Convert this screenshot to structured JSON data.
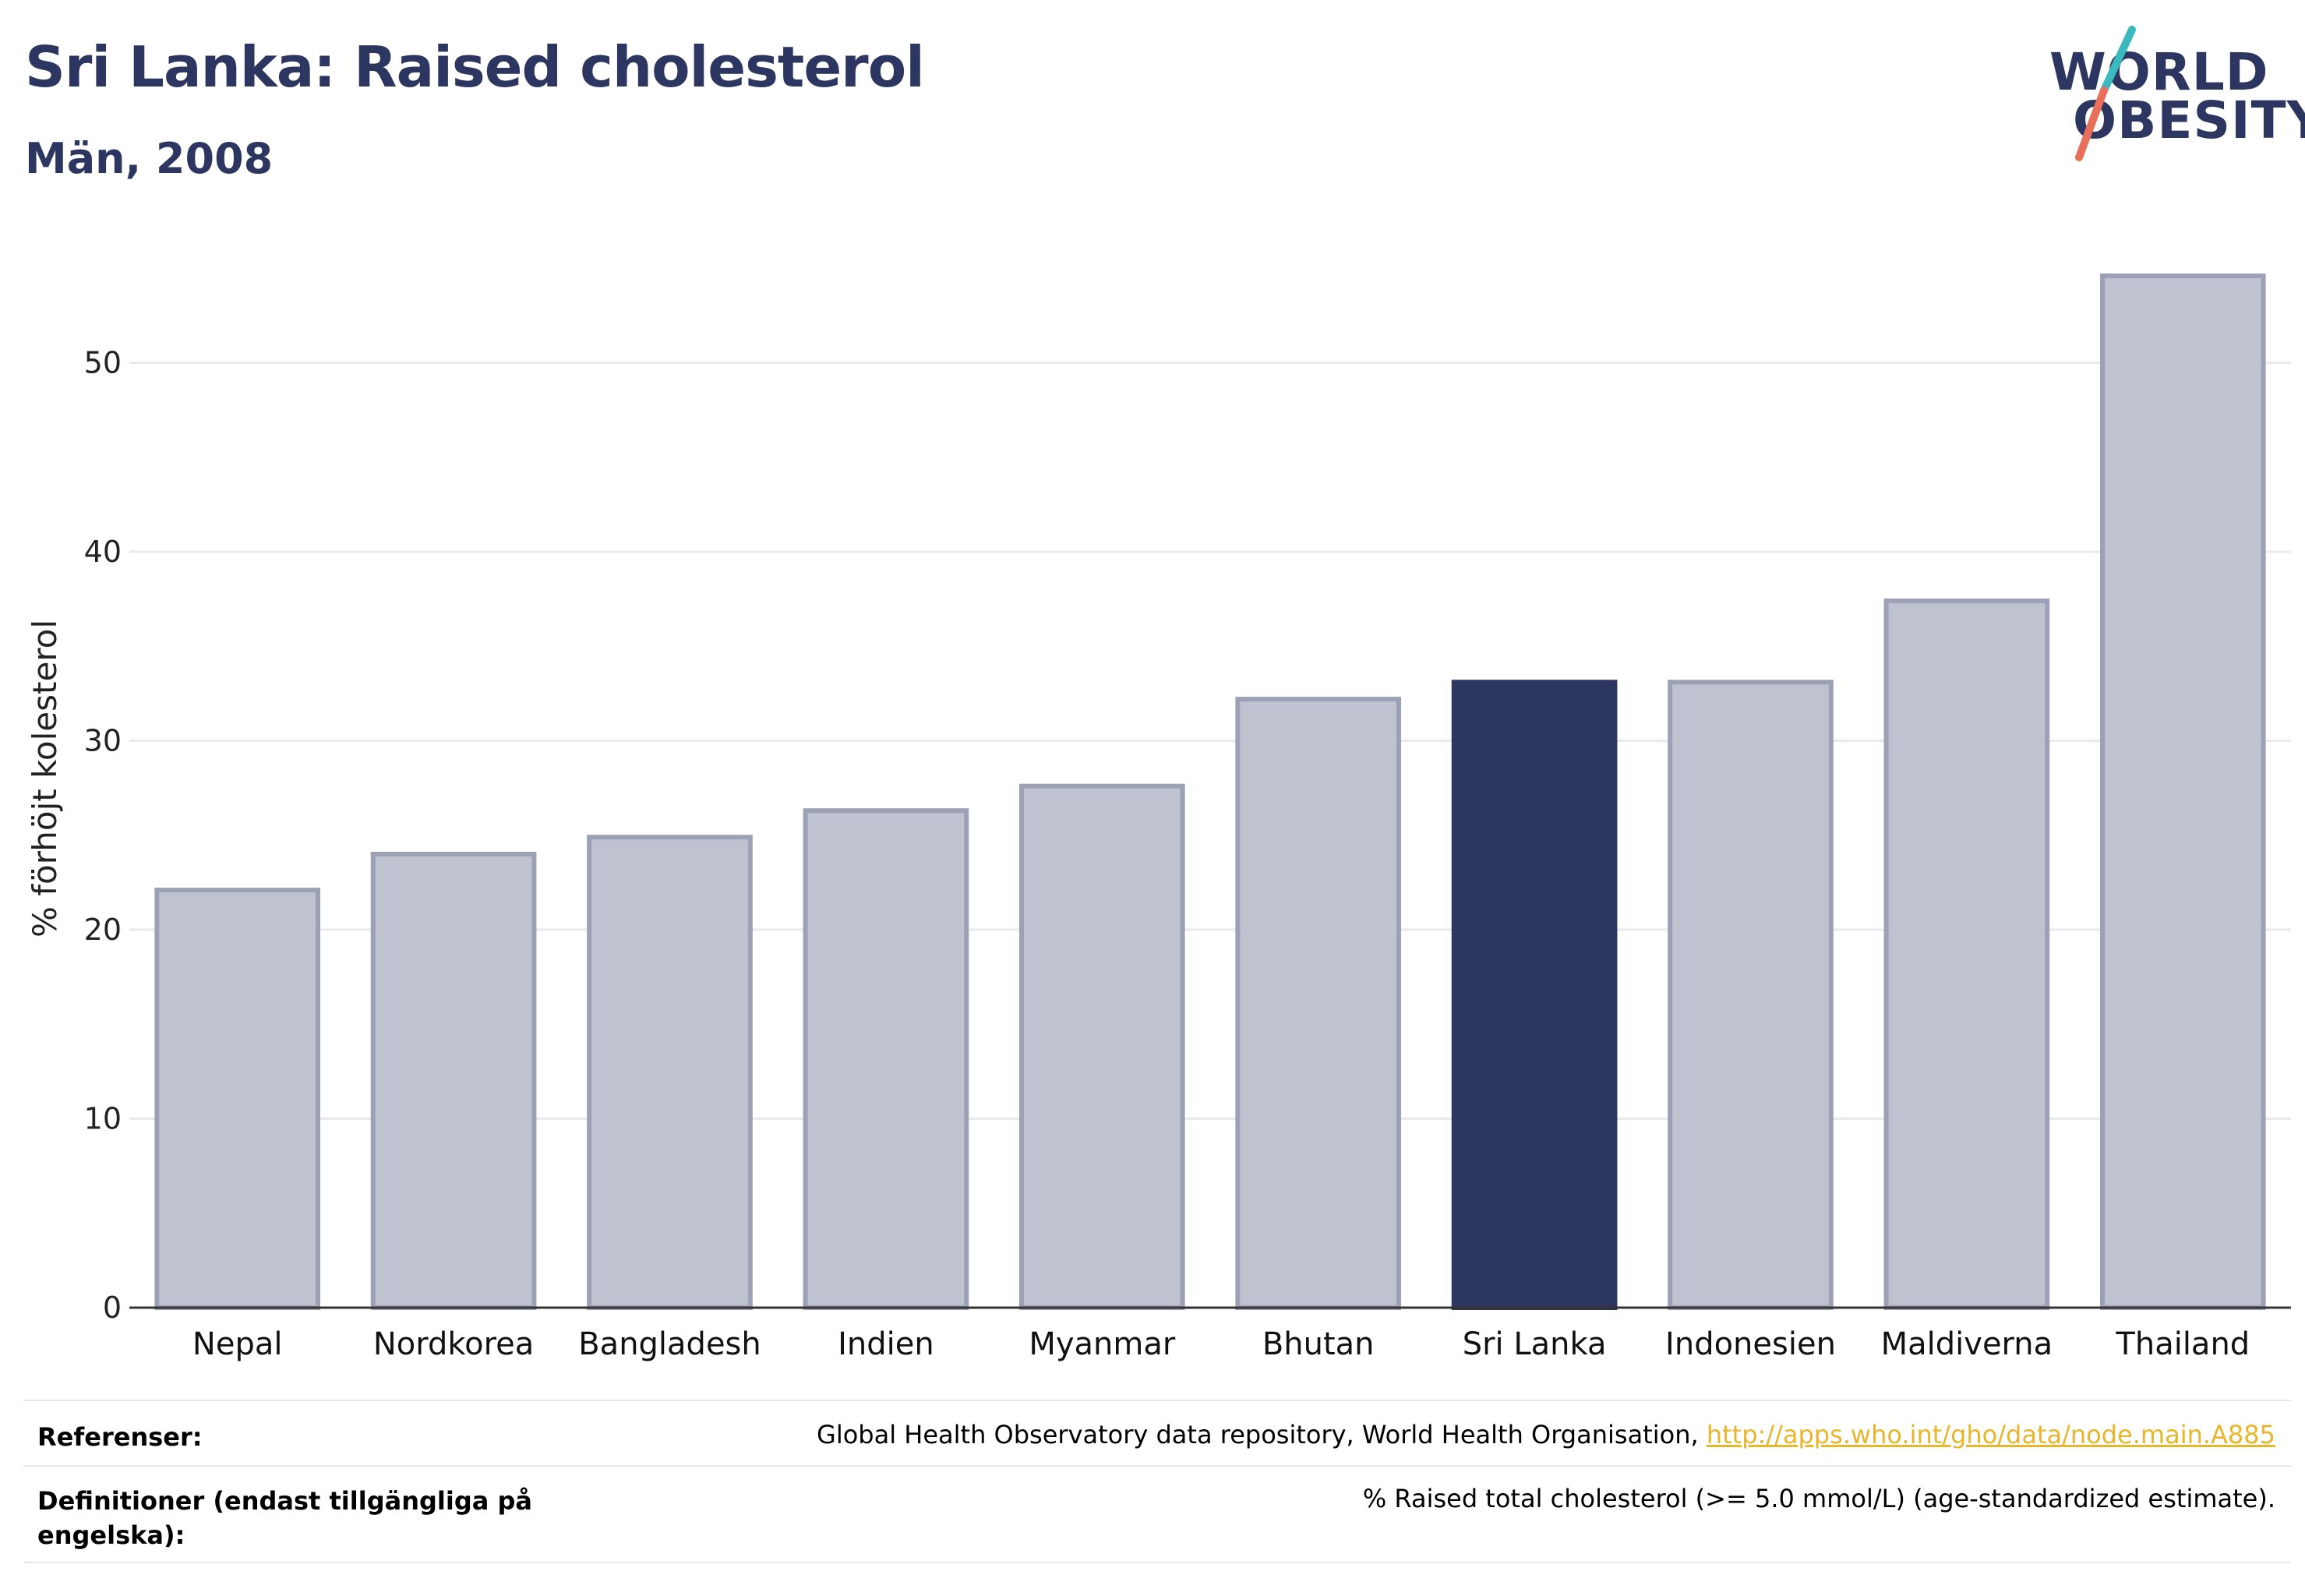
{
  "header": {
    "title": "Sri Lanka: Raised cholesterol",
    "subtitle": "Män, 2008"
  },
  "logo": {
    "line1": "WORLD",
    "line2": "OBESITY",
    "colors": {
      "text": "#2c3660",
      "slash_top": "#3bb9bf",
      "slash_bottom": "#e8705a"
    }
  },
  "chart_data": {
    "type": "bar",
    "title": "Sri Lanka: Raised cholesterol",
    "subtitle": "Män, 2008",
    "xlabel": "",
    "ylabel": "% förhöjt kolesterol",
    "ylim": [
      0,
      56
    ],
    "yticks": [
      0,
      10,
      20,
      30,
      40,
      50
    ],
    "grid": true,
    "categories": [
      "Nepal",
      "Nordkorea",
      "Bangladesh",
      "Indien",
      "Myanmar",
      "Bhutan",
      "Sri Lanka",
      "Indonesien",
      "Maldiverna",
      "Thailand"
    ],
    "values": [
      22.1,
      24.0,
      24.9,
      26.3,
      27.6,
      32.2,
      33.1,
      33.1,
      37.4,
      54.6
    ],
    "highlight": "Sri Lanka",
    "colors": {
      "bar": "#bfc2cf",
      "bar_border": "#9ca1b6",
      "highlight": "#2c3660"
    }
  },
  "footer": {
    "references_label": "Referenser:",
    "references_text": "Global Health Observatory data repository, World Health Organisation, ",
    "references_link": "http://apps.who.int/gho/data/node.main.A885",
    "definitions_label": "Definitioner (endast tillgängliga på engelska):",
    "definitions_text": "% Raised total cholesterol (>= 5.0 mmol/L) (age-standardized estimate)."
  }
}
